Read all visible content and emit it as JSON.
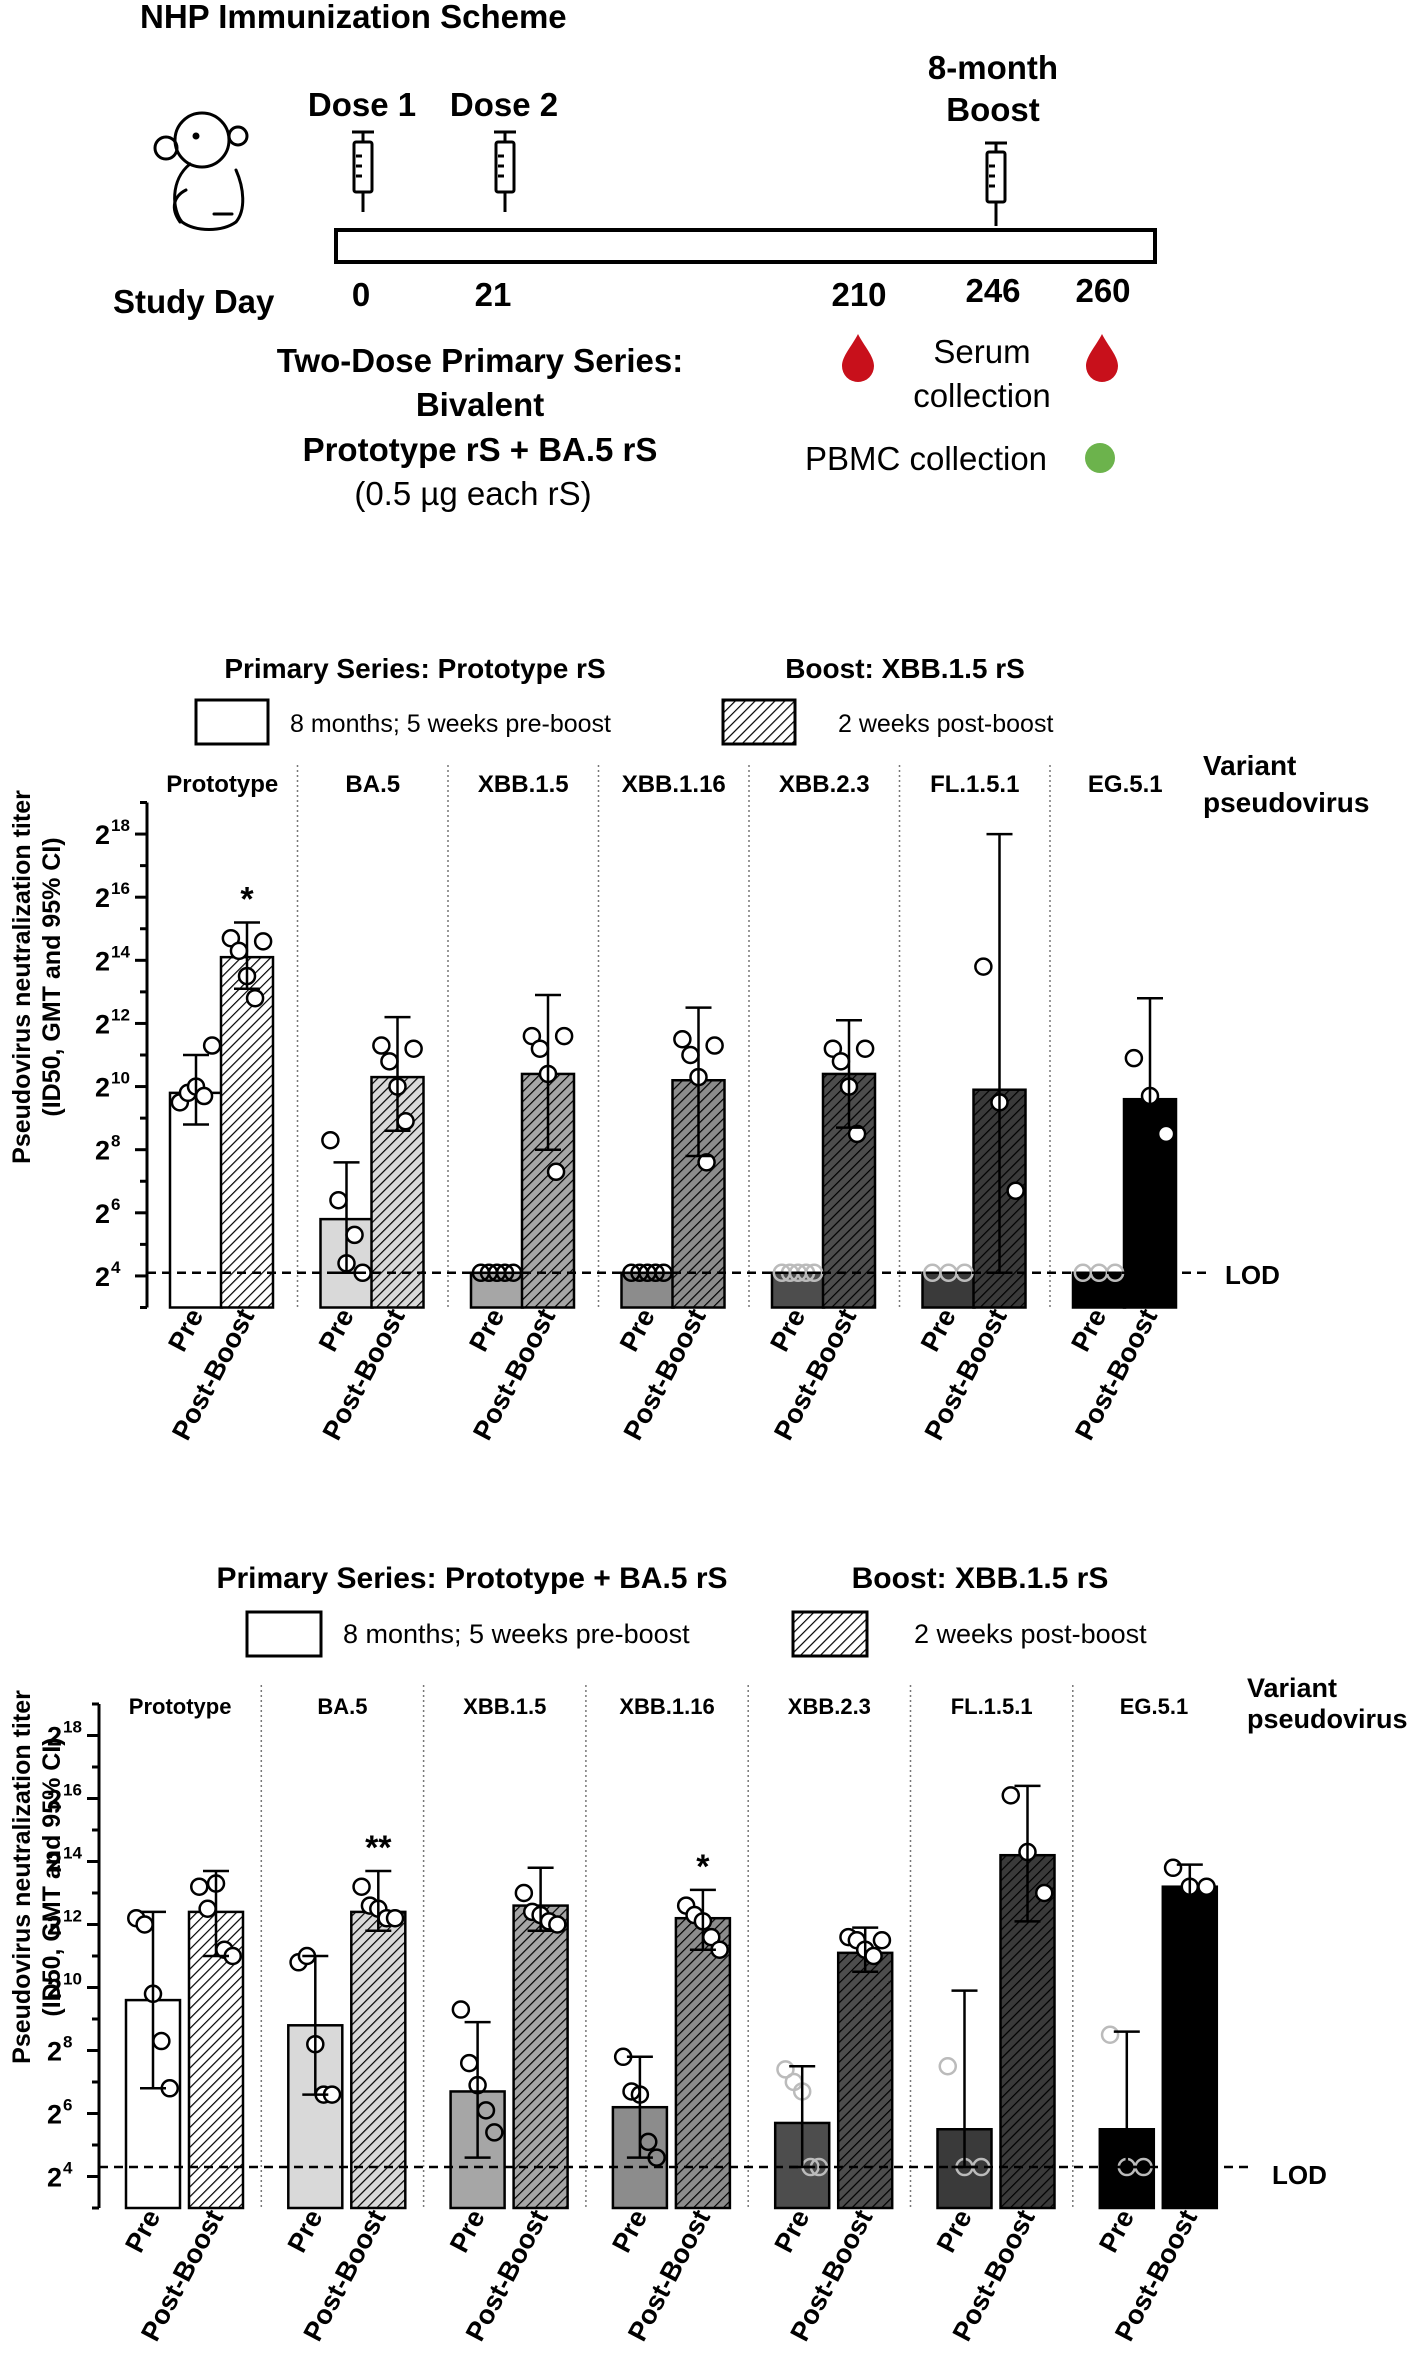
{
  "scheme": {
    "title": "NHP Immunization Scheme",
    "dose1": "Dose 1",
    "dose2": "Dose 2",
    "boost_line1": "8-month",
    "boost_line2": "Boost",
    "study_day": "Study Day",
    "days": [
      "0",
      "21",
      "210",
      "246",
      "260"
    ],
    "primary_line1": "Two-Dose Primary Series:",
    "primary_line2": "Bivalent",
    "primary_line3": "Prototype rS + BA.5 rS",
    "primary_line4": "(0.5 µg each rS)",
    "serum_line1": "Serum",
    "serum_line2": "collection",
    "pbmc": "PBMC collection",
    "colors": {
      "blood": "#c8101b",
      "pbmc": "#6cb34c"
    }
  },
  "chart_data": [
    {
      "type": "bar",
      "title_left": "Primary Series: Prototype rS",
      "title_right": "Boost: XBB.1.5 rS",
      "legend": {
        "pre": "8 months; 5 weeks pre-boost",
        "post": "2 weeks post-boost"
      },
      "ylabel_line1": "Pseudovirus neutralization titer",
      "ylabel_line2": "(ID50, GMT and 95% CI)",
      "yscale": "log2",
      "ylim_exp": [
        3,
        19
      ],
      "yticks": [
        {
          "base": "2",
          "exp": "4"
        },
        {
          "base": "2",
          "exp": "6"
        },
        {
          "base": "2",
          "exp": "8"
        },
        {
          "base": "2",
          "exp": "10"
        },
        {
          "base": "2",
          "exp": "12"
        },
        {
          "base": "2",
          "exp": "14"
        },
        {
          "base": "2",
          "exp": "16"
        },
        {
          "base": "2",
          "exp": "18"
        }
      ],
      "lod_exp": 4.1,
      "lod_label": "LOD",
      "variant_label_line1": "Variant",
      "variant_label_line2": "pseudovirus",
      "bar_labels": [
        "Pre",
        "Post-Boost"
      ],
      "groups": [
        {
          "name": "Prototype",
          "color": "#ffffff",
          "pre": {
            "gmt": 9.8,
            "ci": [
              8.8,
              11.0
            ],
            "points": [
              9.5,
              9.8,
              10.0,
              9.7,
              11.3
            ]
          },
          "post": {
            "gmt": 14.1,
            "ci": [
              13.1,
              15.2
            ],
            "points": [
              14.7,
              14.3,
              13.5,
              12.8,
              14.6
            ],
            "sig": "*"
          }
        },
        {
          "name": "BA.5",
          "color": "#d9d9d9",
          "pre": {
            "gmt": 5.8,
            "ci": [
              4.1,
              7.6
            ],
            "points": [
              8.3,
              6.4,
              4.4,
              5.3,
              4.1
            ]
          },
          "post": {
            "gmt": 10.3,
            "ci": [
              8.6,
              12.2
            ],
            "points": [
              11.3,
              10.8,
              10.0,
              8.9,
              11.2
            ]
          },
          "pre_fill_opacity": 1
        },
        {
          "name": "XBB.1.5",
          "color": "#a6a6a6",
          "pre": {
            "gmt": 4.1,
            "ci": [
              4.1,
              4.1
            ],
            "points": [
              4.1,
              4.1,
              4.1,
              4.1,
              4.1
            ]
          },
          "post": {
            "gmt": 10.4,
            "ci": [
              8.0,
              12.9
            ],
            "points": [
              11.6,
              11.2,
              10.4,
              7.3,
              11.6
            ]
          }
        },
        {
          "name": "XBB.1.16",
          "color": "#8c8c8c",
          "pre": {
            "gmt": 4.1,
            "ci": [
              4.1,
              4.1
            ],
            "points": [
              4.1,
              4.1,
              4.1,
              4.1,
              4.1
            ]
          },
          "post": {
            "gmt": 10.2,
            "ci": [
              7.8,
              12.5
            ],
            "points": [
              11.5,
              11.0,
              10.3,
              7.6,
              11.3
            ]
          }
        },
        {
          "name": "XBB.2.3",
          "color": "#4d4d4d",
          "pre": {
            "gmt": 4.1,
            "ci": [
              4.1,
              4.1
            ],
            "points": [
              4.1,
              4.1,
              4.1,
              4.1,
              4.1
            ]
          },
          "post": {
            "gmt": 10.4,
            "ci": [
              8.7,
              12.1
            ],
            "points": [
              11.2,
              10.8,
              10.0,
              8.5,
              11.2
            ]
          }
        },
        {
          "name": "FL.1.5.1",
          "color": "#3a3a3a",
          "pre": {
            "gmt": 4.1,
            "ci": [
              4.1,
              4.1
            ],
            "points": [
              4.1,
              4.1,
              4.1
            ]
          },
          "post": {
            "gmt": 9.9,
            "ci": [
              4.1,
              18.0
            ],
            "points": [
              13.8,
              9.5,
              6.7
            ]
          }
        },
        {
          "name": "EG.5.1",
          "color": "#000000",
          "pre": {
            "gmt": 4.1,
            "ci": [
              4.1,
              4.1
            ],
            "points": [
              4.1,
              4.1,
              4.1
            ]
          },
          "post": {
            "gmt": 9.6,
            "ci": [
              6.5,
              12.8
            ],
            "points": [
              10.9,
              9.7,
              8.5
            ]
          }
        }
      ]
    },
    {
      "type": "bar",
      "title_left": "Primary Series: Prototype + BA.5 rS",
      "title_right": "Boost: XBB.1.5 rS",
      "legend": {
        "pre": "8 months; 5 weeks pre-boost",
        "post": "2 weeks post-boost"
      },
      "ylabel_line1": "Pseudovirus neutralization titer",
      "ylabel_line2": "(ID50, GMT and 95% CI)",
      "yscale": "log2",
      "ylim_exp": [
        3,
        19
      ],
      "yticks": [
        {
          "base": "2",
          "exp": "4"
        },
        {
          "base": "2",
          "exp": "6"
        },
        {
          "base": "2",
          "exp": "8"
        },
        {
          "base": "2",
          "exp": "10"
        },
        {
          "base": "2",
          "exp": "12"
        },
        {
          "base": "2",
          "exp": "14"
        },
        {
          "base": "2",
          "exp": "16"
        },
        {
          "base": "2",
          "exp": "18"
        }
      ],
      "lod_exp": 4.3,
      "lod_label": "LOD",
      "variant_label_line1": "Variant",
      "variant_label_line2": "pseudovirus",
      "bar_labels": [
        "Pre",
        "Post-Boost"
      ],
      "groups": [
        {
          "name": "Prototype",
          "color": "#ffffff",
          "pre": {
            "gmt": 9.6,
            "ci": [
              6.8,
              12.4
            ],
            "points": [
              12.2,
              12.0,
              9.8,
              8.3,
              6.8
            ]
          },
          "post": {
            "gmt": 12.4,
            "ci": [
              11.0,
              13.7
            ],
            "points": [
              13.2,
              12.5,
              13.3,
              11.2,
              11.0
            ]
          }
        },
        {
          "name": "BA.5",
          "color": "#d9d9d9",
          "pre": {
            "gmt": 8.8,
            "ci": [
              6.6,
              11.0
            ],
            "points": [
              10.8,
              11.0,
              8.2,
              6.6,
              6.6
            ]
          },
          "post": {
            "gmt": 12.4,
            "ci": [
              11.8,
              13.7
            ],
            "points": [
              13.2,
              12.6,
              12.5,
              12.2,
              12.2
            ]
          },
          "post_sig": "**"
        },
        {
          "name": "XBB.1.5",
          "color": "#a6a6a6",
          "pre": {
            "gmt": 6.7,
            "ci": [
              4.6,
              8.9
            ],
            "points": [
              9.3,
              7.6,
              6.9,
              6.1,
              5.4
            ]
          },
          "post": {
            "gmt": 12.6,
            "ci": [
              11.8,
              13.8
            ],
            "points": [
              13.0,
              12.4,
              12.3,
              12.1,
              12.0
            ]
          }
        },
        {
          "name": "XBB.1.16",
          "color": "#8c8c8c",
          "pre": {
            "gmt": 6.2,
            "ci": [
              4.6,
              7.8
            ],
            "points": [
              7.8,
              6.7,
              6.6,
              5.1,
              4.6
            ]
          },
          "post": {
            "gmt": 12.2,
            "ci": [
              11.2,
              13.1
            ],
            "points": [
              12.6,
              12.3,
              12.1,
              11.6,
              11.2
            ]
          },
          "post_sig": "*"
        },
        {
          "name": "XBB.2.3",
          "color": "#4d4d4d",
          "pre": {
            "gmt": 5.7,
            "ci": [
              4.3,
              7.5
            ],
            "points": [
              7.4,
              7.0,
              6.7,
              4.3,
              4.3
            ]
          },
          "post": {
            "gmt": 11.1,
            "ci": [
              10.5,
              11.9
            ],
            "points": [
              11.6,
              11.5,
              11.2,
              11.0,
              11.5
            ]
          }
        },
        {
          "name": "FL.1.5.1",
          "color": "#3a3a3a",
          "pre": {
            "gmt": 5.5,
            "ci": [
              4.3,
              9.9
            ],
            "points": [
              7.5,
              4.3,
              4.3
            ]
          },
          "post": {
            "gmt": 14.2,
            "ci": [
              12.1,
              16.4
            ],
            "points": [
              16.1,
              14.3,
              13.0
            ]
          }
        },
        {
          "name": "EG.5.1",
          "color": "#000000",
          "pre": {
            "gmt": 5.5,
            "ci": [
              4.3,
              8.6
            ],
            "points": [
              8.5,
              4.3,
              4.3
            ]
          },
          "post": {
            "gmt": 13.2,
            "ci": [
              12.7,
              13.9
            ],
            "points": [
              13.8,
              13.2,
              13.2
            ]
          }
        }
      ]
    }
  ]
}
